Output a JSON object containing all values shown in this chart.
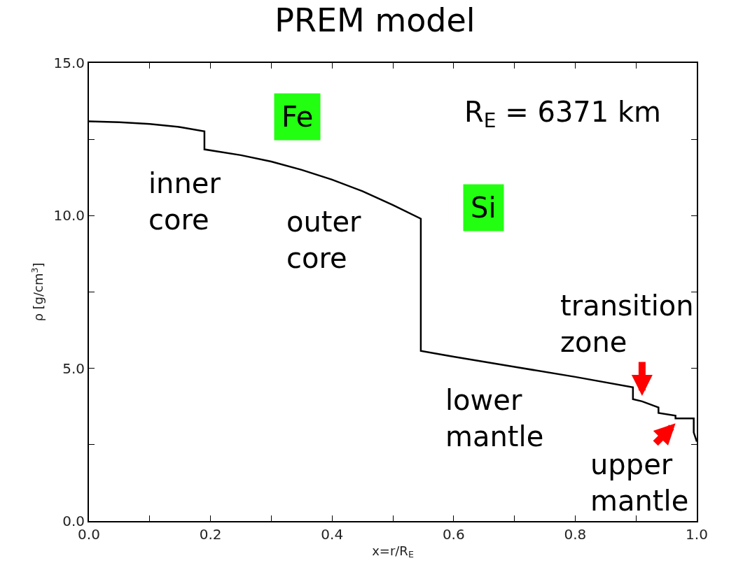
{
  "chart_data": {
    "type": "line",
    "title": "PREM model",
    "xlabel": "x=r/R$_{E}$",
    "ylabel": "ρ [g/cm$^{3}$]",
    "x": [
      0,
      0.05,
      0.1,
      0.15,
      0.19,
      0.19,
      0.25,
      0.3,
      0.35,
      0.4,
      0.45,
      0.5,
      0.546,
      0.546,
      0.6,
      0.7,
      0.8,
      0.895,
      0.895,
      0.91,
      0.937,
      0.937,
      0.965,
      0.965,
      0.995,
      0.995,
      1.0
    ],
    "series": [
      {
        "color": "#000000",
        "values": [
          13.09,
          13.06,
          13.0,
          12.9,
          12.76,
          12.17,
          11.98,
          11.77,
          11.5,
          11.18,
          10.8,
          10.35,
          9.9,
          5.57,
          5.38,
          5.05,
          4.72,
          4.38,
          3.99,
          3.92,
          3.72,
          3.54,
          3.45,
          3.36,
          3.36,
          2.9,
          2.6
        ]
      }
    ],
    "xlim": [
      0,
      1.0
    ],
    "ylim": [
      0,
      15.0
    ],
    "xticks": [
      {
        "value": 0,
        "label": "0.0"
      },
      {
        "value": 0.1,
        "label": null
      },
      {
        "value": 0.2,
        "label": "0.2"
      },
      {
        "value": 0.3,
        "label": null
      },
      {
        "value": 0.4,
        "label": "0.4"
      },
      {
        "value": 0.5,
        "label": null
      },
      {
        "value": 0.6,
        "label": "0.6"
      },
      {
        "value": 0.7,
        "label": null
      },
      {
        "value": 0.8,
        "label": "0.8"
      },
      {
        "value": 0.9,
        "label": null
      },
      {
        "value": 1.0,
        "label": "1.0"
      }
    ],
    "yticks": [
      {
        "value": 0,
        "label": "0.0"
      },
      {
        "value": 2.5,
        "label": null
      },
      {
        "value": 5,
        "label": "5.0"
      },
      {
        "value": 7.5,
        "label": null
      },
      {
        "value": 10,
        "label": "10.0"
      },
      {
        "value": 12.5,
        "label": null
      },
      {
        "value": 15,
        "label": "15.0"
      }
    ],
    "marker": "none",
    "line_style": "solid",
    "annotations": [
      "Fe",
      "Si",
      "R$_{E}$ = 6371 km",
      "inner\ncore",
      "outer\ncore",
      "transition\nzone",
      "lower\nmantle",
      "upper\nmantle"
    ]
  }
}
